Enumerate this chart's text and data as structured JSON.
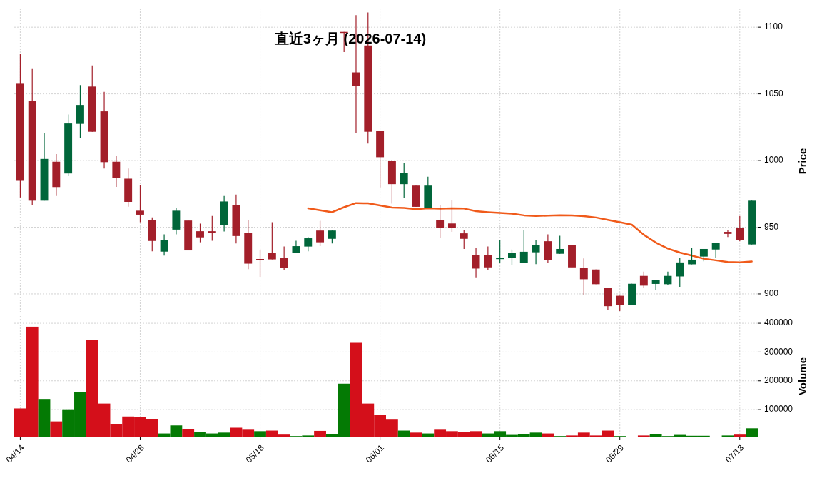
{
  "chart_data": [
    {
      "type": "candlestick",
      "title": "直近3ヶ月 (2026-07-14)",
      "ylabel": "Price",
      "ylim": [
        885,
        1114
      ],
      "yticks": [
        900,
        950,
        1000,
        1050,
        1100
      ],
      "grid": true,
      "tick_labels": "y",
      "categories": [
        null,
        null,
        null,
        null,
        null,
        null,
        null,
        null,
        null,
        null,
        null,
        null,
        null,
        null,
        null,
        null,
        null,
        null,
        null,
        null,
        null,
        null,
        null,
        null,
        null,
        null,
        null,
        null,
        null,
        null,
        null,
        null,
        null,
        null,
        null,
        null,
        null,
        null,
        null,
        null,
        null,
        null,
        null,
        null,
        null,
        null,
        null,
        null,
        null,
        null,
        null,
        null,
        null,
        null,
        null,
        null,
        null,
        null,
        null,
        null,
        null,
        null
      ],
      "ohlc": [
        [
          1057.6,
          1080.3,
          972.3,
          984.8
        ],
        [
          1044.9,
          1068.6,
          966.5,
          969.9
        ],
        [
          969.9,
          1020.9,
          969.9,
          1001.2
        ],
        [
          999.1,
          1004.8,
          973.4,
          980.1
        ],
        [
          990.3,
          1034.6,
          988.3,
          1027.8
        ],
        [
          1027.5,
          1056.6,
          1017.0,
          1041.7
        ],
        [
          1055.5,
          1071.3,
          1021.6,
          1021.6
        ],
        [
          1036.9,
          1051.6,
          994.0,
          998.8
        ],
        [
          999.1,
          1003.2,
          980.3,
          987.1
        ],
        [
          986.4,
          994.0,
          965.4,
          969.0
        ],
        [
          962.4,
          981.6,
          953.7,
          959.4
        ],
        [
          955.5,
          957.3,
          931.9,
          939.7
        ],
        [
          931.7,
          944.7,
          928.7,
          940.6
        ],
        [
          948.2,
          964.4,
          944.7,
          962.4
        ],
        [
          955.0,
          955.0,
          932.6,
          932.6
        ],
        [
          947.0,
          952.7,
          938.7,
          942.4
        ],
        [
          947.0,
          958.5,
          939.9,
          945.7
        ],
        [
          951.4,
          973.4,
          946.8,
          969.3
        ],
        [
          966.7,
          974.5,
          937.8,
          943.4
        ],
        [
          945.9,
          955.3,
          918.6,
          922.7
        ],
        [
          926.2,
          933.3,
          912.8,
          926.0
        ],
        [
          931.0,
          953.7,
          925.9,
          925.9
        ],
        [
          926.8,
          935.6,
          918.1,
          919.5
        ],
        [
          930.7,
          939.9,
          930.7,
          935.8
        ],
        [
          935.5,
          942.6,
          931.9,
          941.7
        ],
        [
          947.5,
          954.8,
          935.8,
          938.7
        ],
        [
          941.3,
          947.5,
          937.8,
          947.5
        ],
        [
          1096.5,
          1096.5,
          1081.4,
          1096.0
        ],
        [
          1066.1,
          1109.0,
          1020.9,
          1055.7
        ],
        [
          1086.3,
          1111.0,
          1012.8,
          1021.6
        ],
        [
          1022.0,
          1022.3,
          979.8,
          1002.5
        ],
        [
          999.6,
          1000.5,
          967.7,
          982.3
        ],
        [
          982.3,
          997.9,
          971.8,
          990.6
        ],
        [
          981.2,
          981.2,
          965.3,
          965.3
        ],
        [
          964.2,
          987.8,
          964.2,
          981.2
        ],
        [
          955.5,
          966.5,
          941.7,
          949.3
        ],
        [
          952.8,
          970.7,
          946.5,
          949.3
        ],
        [
          945.4,
          948.2,
          933.7,
          941.3
        ],
        [
          929.3,
          934.6,
          912.4,
          919.0
        ],
        [
          929.3,
          935.6,
          917.7,
          919.9
        ],
        [
          926.6,
          940.3,
          923.4,
          926.9
        ],
        [
          926.9,
          933.3,
          921.6,
          930.5
        ],
        [
          923.1,
          948.2,
          923.1,
          931.6
        ],
        [
          931.2,
          940.4,
          922.3,
          936.4
        ],
        [
          939.5,
          944.7,
          923.4,
          925.4
        ],
        [
          930.1,
          943.6,
          930.1,
          933.7
        ],
        [
          936.4,
          936.4,
          919.9,
          919.9
        ],
        [
          919.3,
          926.6,
          899.5,
          911.0
        ],
        [
          918.3,
          918.3,
          907.3,
          907.3
        ],
        [
          904.4,
          904.4,
          888.1,
          890.8
        ],
        [
          898.6,
          898.6,
          887.2,
          891.8
        ],
        [
          891.8,
          907.6,
          891.8,
          907.6
        ],
        [
          913.5,
          916.7,
          904.4,
          906.2
        ],
        [
          907.5,
          910.3,
          903.2,
          910.3
        ],
        [
          907.3,
          916.7,
          906.4,
          913.5
        ],
        [
          913.1,
          927.1,
          905.3,
          923.6
        ],
        [
          922.2,
          934.4,
          922.2,
          925.7
        ],
        [
          928.0,
          933.7,
          924.5,
          933.7
        ],
        [
          933.3,
          938.5,
          927.1,
          938.5
        ],
        [
          946.5,
          948.2,
          942.6,
          945.0
        ],
        [
          949.5,
          958.5,
          939.4,
          940.3
        ],
        [
          937.1,
          969.9,
          937.1,
          969.9
        ]
      ],
      "colors": [
        "#a31f2a",
        "#a31f2a",
        "#00663a",
        "#a31f2a",
        "#00663a",
        "#00663a",
        "#a31f2a",
        "#a31f2a",
        "#a31f2a",
        "#a31f2a",
        "#a31f2a",
        "#a31f2a",
        "#00663a",
        "#00663a",
        "#a31f2a",
        "#a31f2a",
        "#a31f2a",
        "#00663a",
        "#a31f2a",
        "#a31f2a",
        "#a31f2a",
        "#a31f2a",
        "#a31f2a",
        "#00663a",
        "#00663a",
        "#a31f2a",
        "#00663a",
        "#a31f2a",
        "#a31f2a",
        "#a31f2a",
        "#a31f2a",
        "#a31f2a",
        "#00663a",
        "#a31f2a",
        "#00663a",
        "#a31f2a",
        "#a31f2a",
        "#a31f2a",
        "#a31f2a",
        "#a31f2a",
        "#00663a",
        "#00663a",
        "#00663a",
        "#00663a",
        "#a31f2a",
        "#00663a",
        "#a31f2a",
        "#a31f2a",
        "#a31f2a",
        "#a31f2a",
        "#a31f2a",
        "#00663a",
        "#a31f2a",
        "#00663a",
        "#00663a",
        "#00663a",
        "#00663a",
        "#00663a",
        "#00663a",
        "#a31f2a",
        "#a31f2a",
        "#00663a"
      ],
      "series": [
        {
          "type": "line",
          "color": "#f05a1a",
          "values": [
            null,
            null,
            null,
            null,
            null,
            null,
            null,
            null,
            null,
            null,
            null,
            null,
            null,
            null,
            null,
            null,
            null,
            null,
            null,
            null,
            null,
            null,
            null,
            null,
            964.2,
            962.7,
            961.3,
            965.0,
            968.1,
            967.9,
            966.3,
            964.7,
            964.4,
            963.5,
            964.2,
            963.9,
            964.2,
            964.0,
            962.0,
            961.3,
            960.7,
            960.2,
            958.9,
            958.5,
            958.7,
            959.0,
            958.8,
            958.3,
            957.3,
            955.5,
            953.7,
            951.9,
            944.3,
            938.5,
            934.0,
            931.0,
            928.7,
            926.4,
            925.2,
            923.9,
            923.6,
            924.3
          ]
        }
      ]
    },
    {
      "type": "bar",
      "ylabel": "Volume",
      "ylim": [
        6000,
        425000
      ],
      "yticks": [
        100000,
        200000,
        300000,
        400000
      ],
      "grid": true,
      "categories": [
        "04/14",
        null,
        null,
        null,
        null,
        null,
        null,
        null,
        null,
        null,
        "04/28",
        null,
        null,
        null,
        null,
        null,
        null,
        null,
        null,
        null,
        "05/18",
        null,
        null,
        null,
        null,
        null,
        null,
        null,
        null,
        null,
        "06/01",
        null,
        null,
        null,
        null,
        null,
        null,
        null,
        null,
        null,
        "06/15",
        null,
        null,
        null,
        null,
        null,
        null,
        null,
        null,
        null,
        "06/29",
        null,
        null,
        null,
        null,
        null,
        null,
        null,
        null,
        null,
        "07/13",
        null
      ],
      "values": [
        104000,
        388000,
        137000,
        59000,
        101000,
        160000,
        342000,
        121000,
        49000,
        76000,
        75000,
        66000,
        17000,
        45000,
        33000,
        23000,
        17000,
        20000,
        37000,
        30000,
        25000,
        27000,
        13000,
        8000,
        10000,
        26000,
        15000,
        190000,
        332000,
        121000,
        82000,
        65000,
        27000,
        20000,
        17000,
        30000,
        25000,
        22000,
        25000,
        17000,
        25000,
        12000,
        15000,
        20000,
        17000,
        8000,
        10000,
        20000,
        10000,
        27000,
        8000,
        null,
        10000,
        15000,
        8000,
        12000,
        9000,
        9000,
        null,
        10000,
        13000,
        35000
      ],
      "colors": [
        "#d40f1a",
        "#d40f1a",
        "#047a04",
        "#d40f1a",
        "#047a04",
        "#047a04",
        "#d40f1a",
        "#d40f1a",
        "#d40f1a",
        "#d40f1a",
        "#d40f1a",
        "#d40f1a",
        "#047a04",
        "#047a04",
        "#d40f1a",
        "#047a04",
        "#047a04",
        "#047a04",
        "#d40f1a",
        "#d40f1a",
        "#047a04",
        "#d40f1a",
        "#d40f1a",
        "#047a04",
        "#047a04",
        "#d40f1a",
        "#047a04",
        "#047a04",
        "#d40f1a",
        "#d40f1a",
        "#d40f1a",
        "#d40f1a",
        "#047a04",
        "#d40f1a",
        "#047a04",
        "#d40f1a",
        "#d40f1a",
        "#d40f1a",
        "#d40f1a",
        "#047a04",
        "#047a04",
        "#047a04",
        "#047a04",
        "#047a04",
        "#d40f1a",
        "#047a04",
        "#d40f1a",
        "#d40f1a",
        "#d40f1a",
        "#d40f1a",
        "#047a04",
        null,
        "#d40f1a",
        "#047a04",
        "#047a04",
        "#047a04",
        "#047a04",
        "#047a04",
        null,
        "#047a04",
        "#d40f1a",
        "#047a04"
      ]
    }
  ]
}
